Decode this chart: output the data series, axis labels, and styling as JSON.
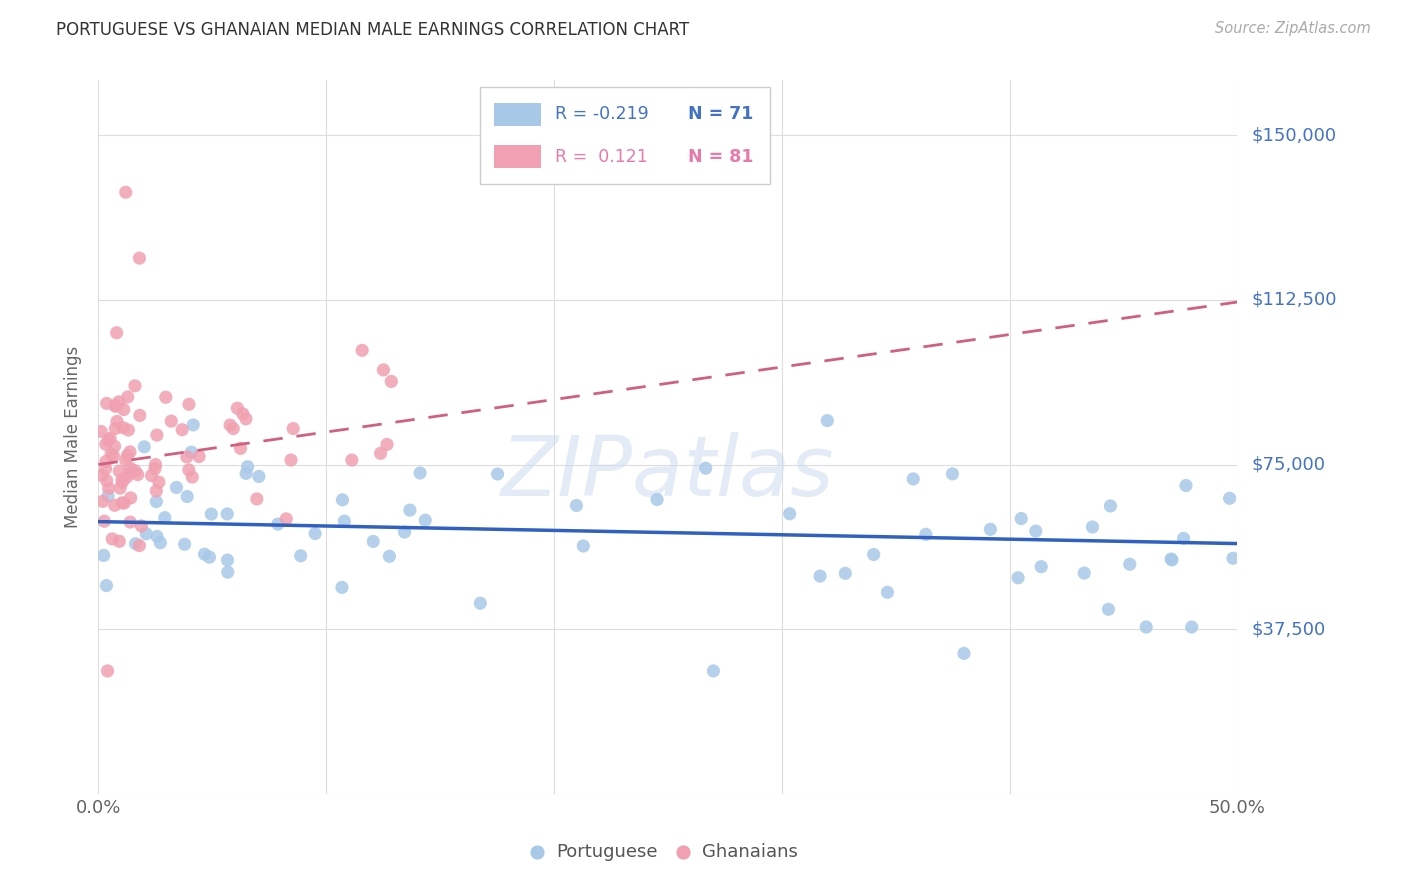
{
  "title": "PORTUGUESE VS GHANAIAN MEDIAN MALE EARNINGS CORRELATION CHART",
  "source": "Source: ZipAtlas.com",
  "ylabel": "Median Male Earnings",
  "xlim": [
    0.0,
    0.5
  ],
  "ylim": [
    0,
    162500
  ],
  "yticks": [
    0,
    37500,
    75000,
    112500,
    150000
  ],
  "ytick_labels": [
    "",
    "$37,500",
    "$75,000",
    "$112,500",
    "$150,000"
  ],
  "xtick_labels": [
    "0.0%",
    "",
    "",
    "",
    "",
    "50.0%"
  ],
  "watermark": "ZIPatlas",
  "portuguese_color": "#a8c8e8",
  "ghanaian_color": "#f0a0b0",
  "trendline_portuguese_color": "#3060c0",
  "trendline_ghanaian_color": "#d06080",
  "background_color": "#ffffff",
  "legend_r_port": "R = -0.219",
  "legend_n_port": "N = 71",
  "legend_r_ghana": "R =  0.121",
  "legend_n_ghana": "N = 81",
  "port_trend_y0": 62000,
  "port_trend_y1": 57000,
  "ghana_trend_y0": 75000,
  "ghana_trend_y1": 112000
}
